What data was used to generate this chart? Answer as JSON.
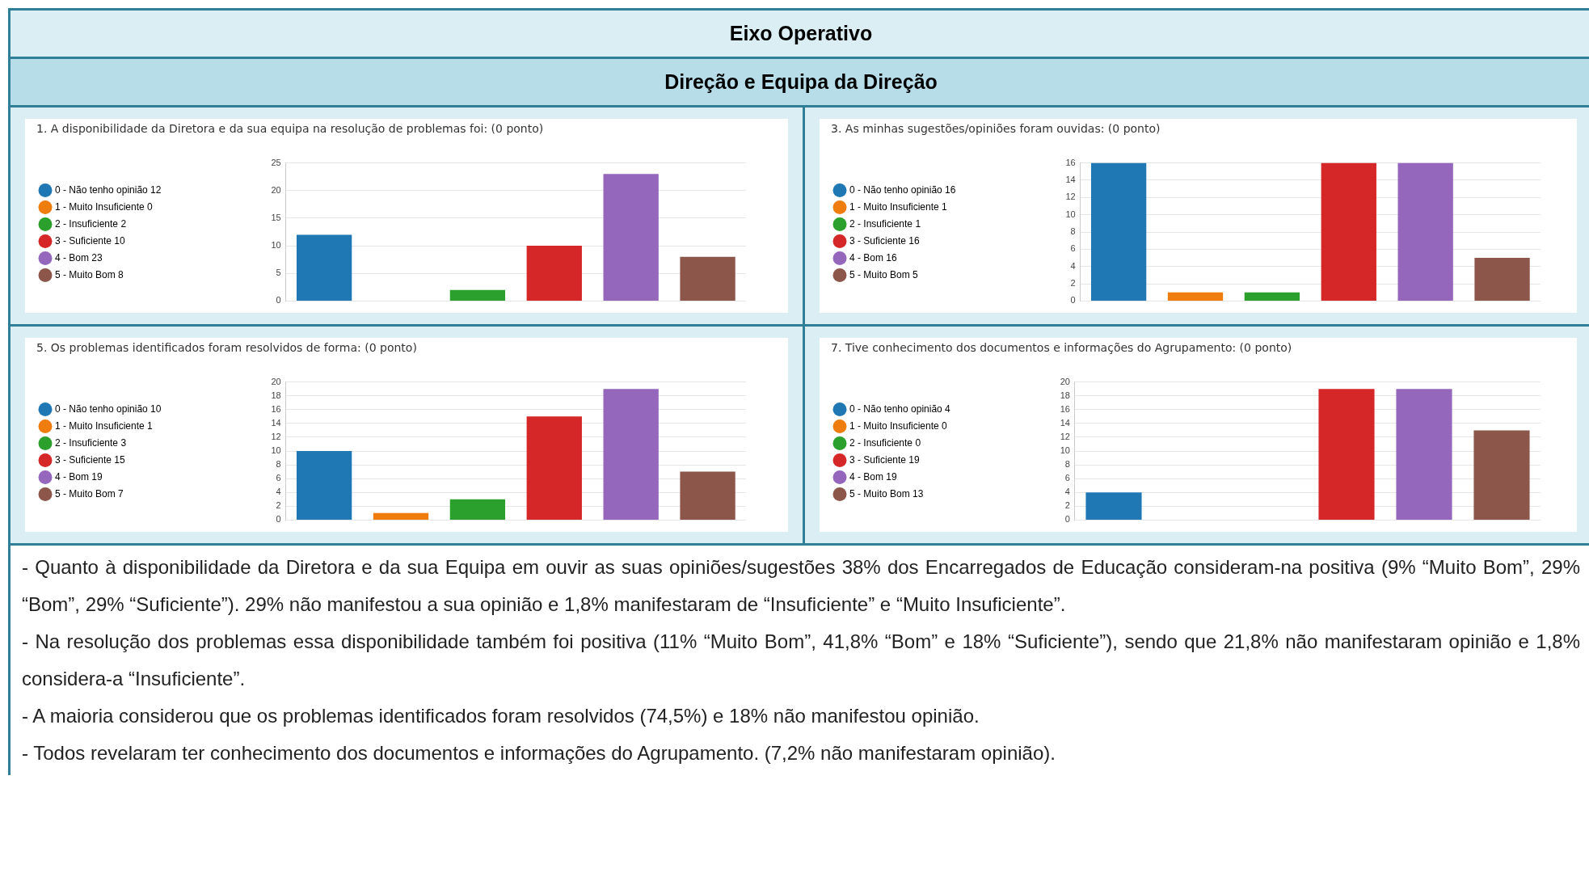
{
  "chart_data": [
    {
      "type": "other",
      "title": "Eixo Operativo",
      "subtitle": "Direção e Equipa da Direção"
    },
    {
      "type": "bar",
      "title": "1. A disponibilidade da Diretora e da sua equipa na resolução de problemas foi: (0 ponto)",
      "categories": [
        null
      ],
      "series": [
        {
          "name": "0 - Não tenho opinião 12",
          "color": "#1f77b4",
          "values": [
            12
          ]
        },
        {
          "name": "1 - Muito Insuficiente 0",
          "color": "#ef7d0e",
          "values": [
            0
          ]
        },
        {
          "name": "2 - Insuficiente 2",
          "color": "#2ca02c",
          "values": [
            2
          ]
        },
        {
          "name": "3 - Suficiente 10",
          "color": "#d62728",
          "values": [
            10
          ]
        },
        {
          "name": "4 - Bom 23",
          "color": "#9467bd",
          "values": [
            23
          ]
        },
        {
          "name": "5 - Muito Bom 8",
          "color": "#8c564b",
          "values": [
            8
          ]
        }
      ],
      "ylim": [
        0,
        25
      ],
      "yticks": [
        0,
        5,
        10,
        15,
        20,
        25
      ],
      "grid": "y",
      "legend": "left",
      "tick_labels": "y"
    },
    {
      "type": "bar",
      "title": "3. As minhas sugestões/opiniões foram ouvidas: (0 ponto)",
      "categories": [
        null
      ],
      "series": [
        {
          "name": "0 - Não tenho opinião 16",
          "color": "#1f77b4",
          "values": [
            16
          ]
        },
        {
          "name": "1 - Muito Insuficiente 1",
          "color": "#ef7d0e",
          "values": [
            1
          ]
        },
        {
          "name": "2 - Insuficiente 1",
          "color": "#2ca02c",
          "values": [
            1
          ]
        },
        {
          "name": "3 - Suficiente 16",
          "color": "#d62728",
          "values": [
            16
          ]
        },
        {
          "name": "4 - Bom 16",
          "color": "#9467bd",
          "values": [
            16
          ]
        },
        {
          "name": "5 - Muito Bom 5",
          "color": "#8c564b",
          "values": [
            5
          ]
        }
      ],
      "ylim": [
        0,
        16
      ],
      "yticks": [
        0,
        2,
        4,
        6,
        8,
        10,
        12,
        14,
        16
      ],
      "grid": "y",
      "legend": "left",
      "tick_labels": "y"
    },
    {
      "type": "bar",
      "title": "5. Os problemas identificados foram resolvidos de forma: (0 ponto)",
      "categories": [
        null
      ],
      "series": [
        {
          "name": "0 - Não tenho opinião 10",
          "color": "#1f77b4",
          "values": [
            10
          ]
        },
        {
          "name": "1 - Muito Insuficiente 1",
          "color": "#ef7d0e",
          "values": [
            1
          ]
        },
        {
          "name": "2 - Insuficiente 3",
          "color": "#2ca02c",
          "values": [
            3
          ]
        },
        {
          "name": "3 - Suficiente 15",
          "color": "#d62728",
          "values": [
            15
          ]
        },
        {
          "name": "4 - Bom 19",
          "color": "#9467bd",
          "values": [
            19
          ]
        },
        {
          "name": "5 - Muito Bom 7",
          "color": "#8c564b",
          "values": [
            7
          ]
        }
      ],
      "ylim": [
        0,
        20
      ],
      "yticks": [
        0,
        2,
        4,
        6,
        8,
        10,
        12,
        14,
        16,
        18,
        20
      ],
      "grid": "y",
      "legend": "left",
      "tick_labels": "y"
    },
    {
      "type": "bar",
      "title": "7. Tive conhecimento dos documentos e informações do Agrupamento: (0 ponto)",
      "categories": [
        null
      ],
      "series": [
        {
          "name": "0 - Não tenho opinião 4",
          "color": "#1f77b4",
          "values": [
            4
          ]
        },
        {
          "name": "1 - Muito Insuficiente 0",
          "color": "#ef7d0e",
          "values": [
            0
          ]
        },
        {
          "name": "2 - Insuficiente 0",
          "color": "#2ca02c",
          "values": [
            0
          ]
        },
        {
          "name": "3 - Suficiente 19",
          "color": "#d62728",
          "values": [
            19
          ]
        },
        {
          "name": "4 - Bom 19",
          "color": "#9467bd",
          "values": [
            19
          ]
        },
        {
          "name": "5 - Muito Bom 13",
          "color": "#8c564b",
          "values": [
            13
          ]
        }
      ],
      "ylim": [
        0,
        20
      ],
      "yticks": [
        0,
        2,
        4,
        6,
        8,
        10,
        12,
        14,
        16,
        18,
        20
      ],
      "grid": "y",
      "legend": "left",
      "tick_labels": "y"
    },
    {
      "type": "other",
      "annotations": [
        "- Quanto à disponibilidade da Diretora e da sua Equipa em ouvir as suas opiniões/sugestões 38% dos Encarregados de Educação consideram-na positiva (9% “Muito Bom”, 29% “Bom”, 29% “Suficiente”). 29% não manifestou a sua opinião e 1,8% manifestaram de “Insuficiente” e “Muito Insuficiente”.",
        "- Na resolução dos problemas essa disponibilidade também foi positiva (11% “Muito Bom”, 41,8% “Bom” e 18% “Suficiente”), sendo que 21,8% não manifestaram opinião e 1,8% considera-a “Insuficiente”.",
        "- A maioria considerou que os problemas identificados foram resolvidos (74,5%) e 18% não manifestou opinião.",
        "- Todos revelaram ter conhecimento dos documentos e informações do Agrupamento. (7,2% não manifestaram opinião)."
      ]
    }
  ]
}
